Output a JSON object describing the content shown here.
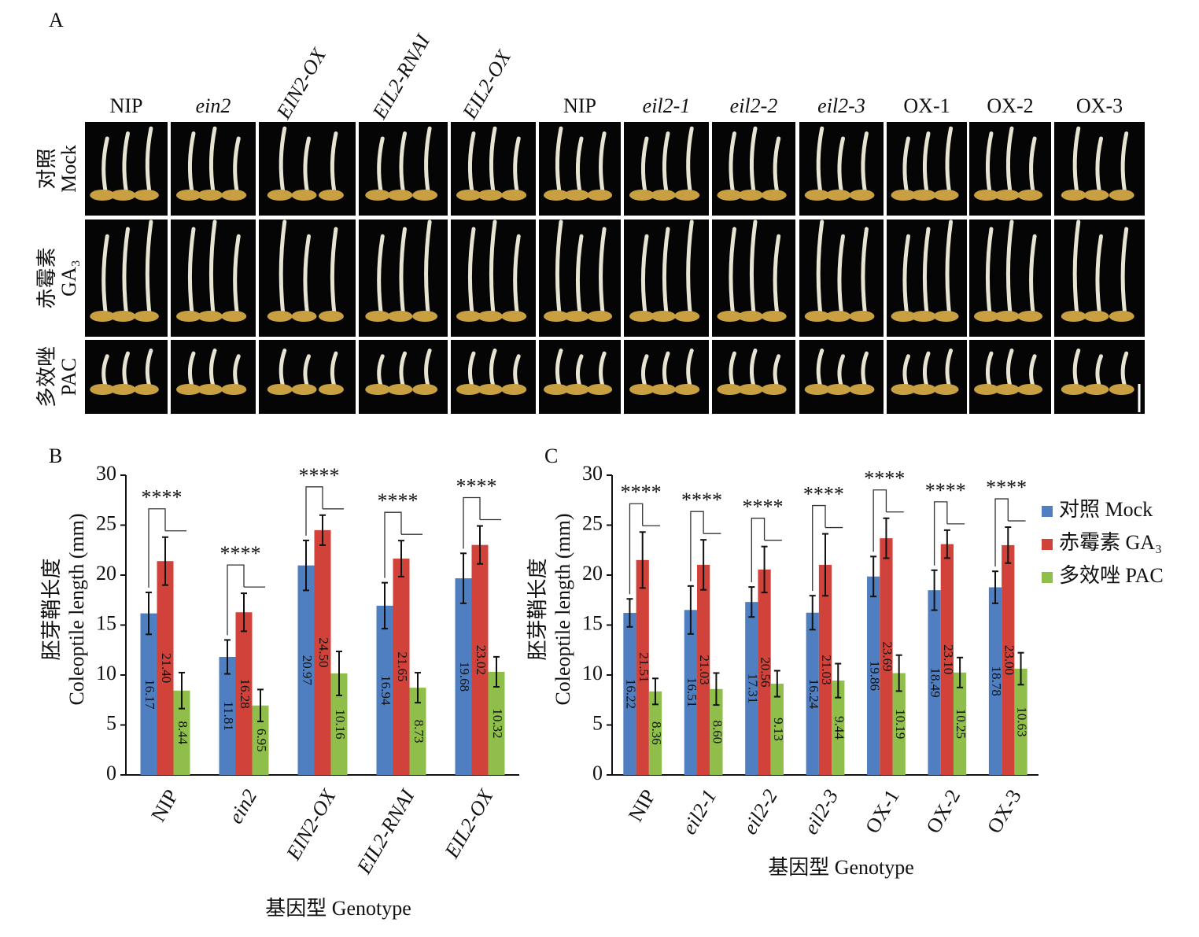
{
  "panel_a": {
    "label": "A",
    "columns": [
      {
        "label": "NIP",
        "italic": false,
        "rotated": false
      },
      {
        "label": "ein2",
        "italic": true,
        "rotated": false
      },
      {
        "label": "EIN2-OX",
        "italic": true,
        "rotated": true
      },
      {
        "label": "EIL2-RNAI",
        "italic": true,
        "rotated": true
      },
      {
        "label": "EIL2-OX",
        "italic": true,
        "rotated": true
      },
      {
        "label": "NIP",
        "italic": false,
        "rotated": false
      },
      {
        "label": "eil2-1",
        "italic": true,
        "rotated": false
      },
      {
        "label": "eil2-2",
        "italic": true,
        "rotated": false
      },
      {
        "label": "eil2-3",
        "italic": true,
        "rotated": false
      },
      {
        "label": "OX-1",
        "italic": false,
        "rotated": false
      },
      {
        "label": "OX-2",
        "italic": false,
        "rotated": false
      },
      {
        "label": "OX-3",
        "italic": false,
        "rotated": false
      }
    ],
    "rows": [
      {
        "zh": "对照",
        "en": "Mock"
      },
      {
        "zh": "赤霉素",
        "en": "GA₃"
      },
      {
        "zh": "多效唑",
        "en": "PAC"
      }
    ]
  },
  "chart_data": [
    {
      "type": "bar",
      "label": "B",
      "categories": [
        "NIP",
        "ein2",
        "EIN2-OX",
        "EIL2-RNAI",
        "EIL2-OX"
      ],
      "italic": [
        false,
        true,
        true,
        true,
        true
      ],
      "series": [
        {
          "color": "#4f7fc0",
          "values": [
            16.17,
            11.81,
            20.97,
            16.94,
            19.68
          ],
          "value_labels": [
            "16.17",
            "11.81",
            "20.97",
            "16.94",
            "19.68"
          ],
          "errors": [
            2.1,
            1.7,
            2.5,
            2.3,
            2.5
          ]
        },
        {
          "color": "#d0423a",
          "values": [
            21.4,
            16.28,
            24.5,
            21.65,
            23.02
          ],
          "value_labels": [
            "21.40",
            "16.28",
            "24.50",
            "21.65",
            "23.02"
          ],
          "errors": [
            2.4,
            1.9,
            1.5,
            1.8,
            1.9
          ]
        },
        {
          "color": "#8fbf4a",
          "values": [
            8.44,
            6.95,
            10.16,
            8.73,
            10.32
          ],
          "value_labels": [
            "8.44",
            "6.95",
            "10.16",
            "8.73",
            "10.32"
          ],
          "errors": [
            1.8,
            1.6,
            2.2,
            1.5,
            1.5
          ]
        }
      ],
      "annotations": [
        "****",
        "****",
        "****",
        "****",
        "****"
      ],
      "ylim": [
        0,
        30
      ],
      "yticks": [
        0,
        5,
        10,
        15,
        20,
        25,
        30
      ],
      "y_label": [
        "胚芽鞘长度",
        "Coleoptile length (mm)"
      ],
      "x_label": "基因型 Genotype",
      "legend": false
    },
    {
      "type": "bar",
      "label": "C",
      "categories": [
        "NIP",
        "eil2-1",
        "eil2-2",
        "eil2-3",
        "OX-1",
        "OX-2",
        "OX-3"
      ],
      "italic": [
        false,
        true,
        true,
        true,
        false,
        false,
        false
      ],
      "series": [
        {
          "name": "对照 Mock",
          "color": "#4f7fc0",
          "values": [
            16.22,
            16.51,
            17.31,
            16.24,
            19.86,
            18.49,
            18.78
          ],
          "value_labels": [
            "16.22",
            "16.51",
            "17.31",
            "16.24",
            "19.86",
            "18.49",
            "18.78"
          ],
          "errors": [
            1.4,
            2.4,
            1.5,
            1.7,
            2.0,
            2.0,
            1.6
          ]
        },
        {
          "name": "赤霉素 GA₃",
          "color": "#d0423a",
          "values": [
            21.51,
            21.03,
            20.56,
            21.03,
            23.69,
            23.1,
            23.0
          ],
          "value_labels": [
            "21.51",
            "21.03",
            "20.56",
            "21.03",
            "23.69",
            "23.10",
            "23.00"
          ],
          "errors": [
            2.8,
            2.5,
            2.3,
            3.1,
            2.0,
            1.4,
            1.8
          ]
        },
        {
          "name": "多效唑 PAC",
          "color": "#8fbf4a",
          "values": [
            8.36,
            8.6,
            9.13,
            9.44,
            10.19,
            10.25,
            10.63
          ],
          "value_labels": [
            "8.36",
            "8.60",
            "9.13",
            "9.44",
            "10.19",
            "10.25",
            "10.63"
          ],
          "errors": [
            1.3,
            1.6,
            1.3,
            1.7,
            1.8,
            1.5,
            1.6
          ]
        }
      ],
      "annotations": [
        "****",
        "****",
        "****",
        "****",
        "****",
        "****",
        "****"
      ],
      "ylim": [
        0,
        30
      ],
      "yticks": [
        0,
        5,
        10,
        15,
        20,
        25,
        30
      ],
      "y_label": [
        "胚芽鞘长度",
        "Coleoptile length (mm)"
      ],
      "x_label": "基因型 Genotype",
      "legend": true
    }
  ]
}
